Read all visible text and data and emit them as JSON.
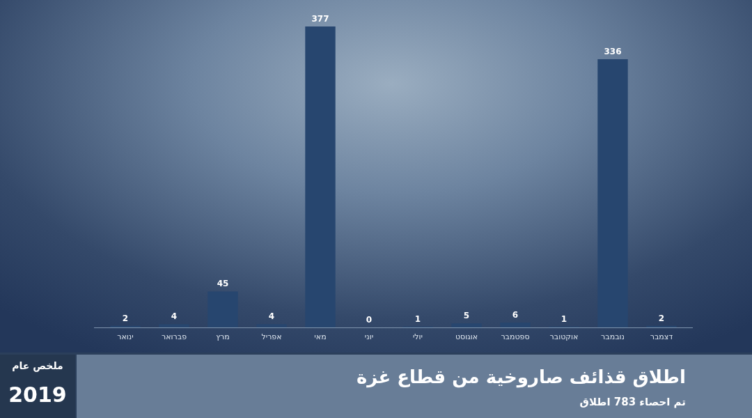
{
  "chart_data": {
    "type": "bar",
    "title": "اطلاق قذائف صاروخية من قطاع غزة",
    "subtitle": "تم احصاء 783 اطلاق",
    "annotations": [
      "ملخص عام",
      "2019"
    ],
    "categories": [
      "ינואר",
      "פברואר",
      "מרץ",
      "אפריל",
      "מאי",
      "יוני",
      "יולי",
      "אוגוסט",
      "ספטמבר",
      "אוקטובר",
      "נובמבר",
      "דצמבר"
    ],
    "values": [
      2,
      4,
      45,
      4,
      377,
      0,
      1,
      5,
      6,
      1,
      336,
      2
    ],
    "color": "#27466f",
    "data_labels": true
  }
}
